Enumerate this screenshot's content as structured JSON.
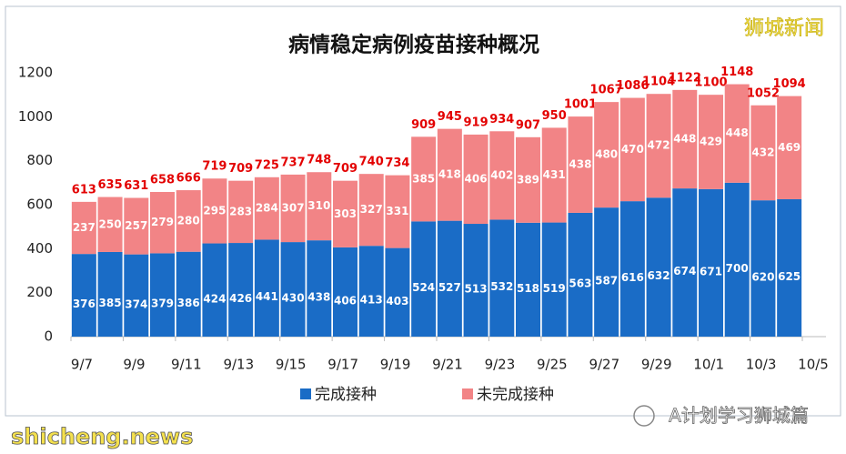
{
  "chart_data": {
    "type": "bar",
    "stacked": true,
    "title": "病情稳定病例疫苗接种概况",
    "xlim": [
      0,
      28
    ],
    "xticks": [
      {
        "value": 0,
        "label": "9/7"
      },
      {
        "value": 2,
        "label": "9/9"
      },
      {
        "value": 4,
        "label": "9/11"
      },
      {
        "value": 6,
        "label": "9/13"
      },
      {
        "value": 8,
        "label": "9/15"
      },
      {
        "value": 10,
        "label": "9/17"
      },
      {
        "value": 12,
        "label": "9/19"
      },
      {
        "value": 14,
        "label": "9/21"
      },
      {
        "value": 16,
        "label": "9/23"
      },
      {
        "value": 18,
        "label": "9/25"
      },
      {
        "value": 20,
        "label": "9/27"
      },
      {
        "value": 22,
        "label": "9/29"
      },
      {
        "value": 24,
        "label": "10/1"
      },
      {
        "value": 26,
        "label": "10/3"
      },
      {
        "value": 28,
        "label": "10/5"
      }
    ],
    "ylim": [
      0,
      1200
    ],
    "yticks": [
      0,
      200,
      400,
      600,
      800,
      1000,
      1200
    ],
    "grid": false,
    "series": [
      {
        "name": "完成接种",
        "color": "#1a6cc6",
        "values": [
          376,
          385,
          374,
          379,
          386,
          424,
          426,
          441,
          430,
          438,
          406,
          413,
          403,
          524,
          527,
          513,
          532,
          518,
          519,
          563,
          587,
          616,
          632,
          674,
          671,
          700,
          620,
          625
        ]
      },
      {
        "name": "未完成接种",
        "color": "#f28486",
        "values": [
          237,
          250,
          257,
          279,
          280,
          295,
          283,
          284,
          307,
          310,
          303,
          327,
          331,
          385,
          418,
          406,
          402,
          389,
          431,
          438,
          480,
          470,
          472,
          448,
          429,
          448,
          432,
          469
        ]
      }
    ],
    "totals": [
      613,
      635,
      631,
      658,
      666,
      719,
      709,
      725,
      737,
      748,
      709,
      740,
      734,
      909,
      945,
      919,
      934,
      907,
      950,
      1001,
      1067,
      1086,
      1104,
      1122,
      1100,
      1148,
      1052,
      1094
    ]
  },
  "watermarks": {
    "top_right": "狮城新闻",
    "bottom_left": "shicheng.news",
    "bottom_right": "A计划学习狮城篇"
  }
}
